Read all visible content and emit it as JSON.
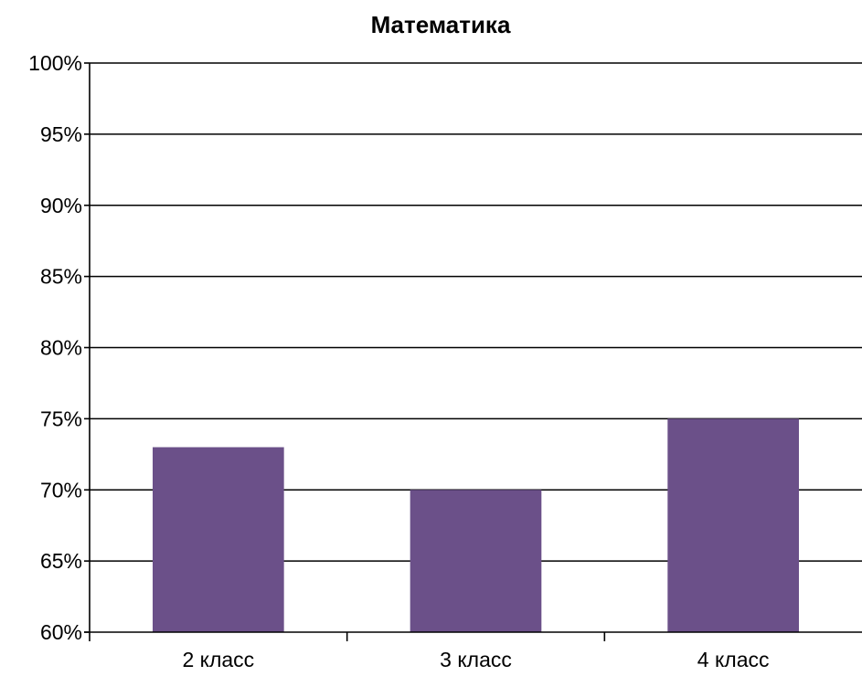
{
  "chart_data": {
    "type": "bar",
    "title": "Математика",
    "xlabel": "",
    "ylabel": "",
    "categories": [
      "2 класс",
      "3 класс",
      "4 класс"
    ],
    "values": [
      73,
      70,
      75
    ],
    "ylim": [
      60,
      100
    ],
    "yticks": [
      60,
      65,
      70,
      75,
      80,
      85,
      90,
      95,
      100
    ],
    "ytick_labels": [
      "60%",
      "65%",
      "70%",
      "75%",
      "80%",
      "85%",
      "90%",
      "95%",
      "100%"
    ],
    "value_format": "percent",
    "grid": true,
    "legend": "none",
    "colors": {
      "bar": "#6B5089",
      "grid": "#000000",
      "axis": "#000000"
    }
  }
}
